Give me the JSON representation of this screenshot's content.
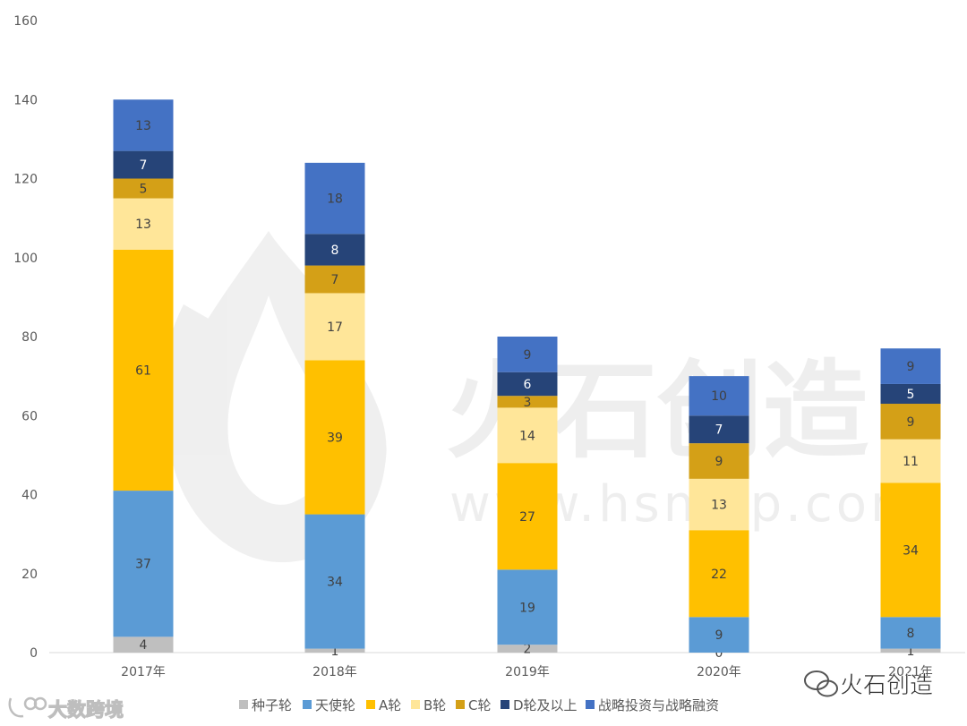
{
  "chart_data": {
    "type": "bar",
    "stacked": true,
    "title": "",
    "xlabel": "",
    "ylabel": "",
    "categories": [
      "2017年",
      "2018年",
      "2019年",
      "2020年",
      "2021年"
    ],
    "ylim": [
      0,
      160
    ],
    "yticks": [
      0,
      20,
      40,
      60,
      80,
      100,
      120,
      140,
      160
    ],
    "grid": false,
    "legend": "bottom",
    "series": [
      {
        "name": "种子轮",
        "color": "#BFBFBF",
        "label_color": "#404040",
        "values": [
          4,
          1,
          2,
          0,
          1
        ]
      },
      {
        "name": "天使轮",
        "color": "#5B9BD5",
        "label_color": "#404040",
        "values": [
          37,
          34,
          19,
          9,
          8
        ]
      },
      {
        "name": "A轮",
        "color": "#FFC000",
        "label_color": "#404040",
        "values": [
          61,
          39,
          27,
          22,
          34
        ]
      },
      {
        "name": "B轮",
        "color": "#FFE699",
        "label_color": "#404040",
        "values": [
          13,
          17,
          14,
          13,
          11
        ]
      },
      {
        "name": "C轮",
        "color": "#D4A017",
        "label_color": "#404040",
        "values": [
          5,
          7,
          3,
          9,
          9
        ]
      },
      {
        "name": "D轮及以上",
        "color": "#264478",
        "label_color": "#ffffff",
        "values": [
          7,
          8,
          6,
          7,
          5
        ]
      },
      {
        "name": "战略投资与战略融资",
        "color": "#4472C4",
        "label_color": "#404040",
        "values": [
          13,
          18,
          9,
          10,
          9
        ]
      }
    ]
  },
  "watermarks": {
    "center_cn": "火石创造",
    "center_url": "www.hsmap.com",
    "bottom_right": "火石创造",
    "bottom_left": "大数跨境"
  }
}
